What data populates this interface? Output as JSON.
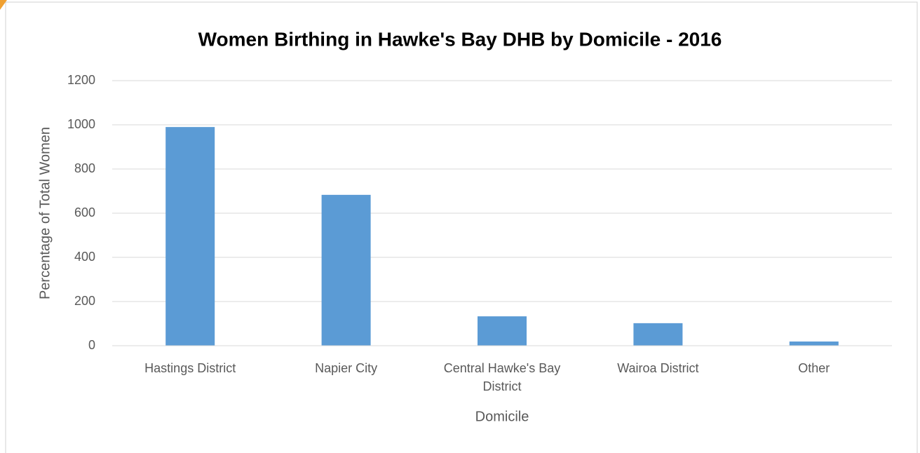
{
  "chart_data": {
    "type": "bar",
    "title": "Women Birthing in Hawke's Bay DHB by Domicile - 2016",
    "x_label": "Domicile",
    "y_label": "Percentage of Total Women",
    "categories": [
      "Hastings District",
      "Napier City",
      "Central Hawke's Bay District",
      "Wairoa District",
      "Other"
    ],
    "values": [
      990,
      683,
      133,
      102,
      19
    ],
    "color": "#5b9bd5",
    "ylim": [
      0,
      1200
    ],
    "yticks": [
      0,
      200,
      400,
      600,
      800,
      1000,
      1200
    ],
    "grid": true
  }
}
